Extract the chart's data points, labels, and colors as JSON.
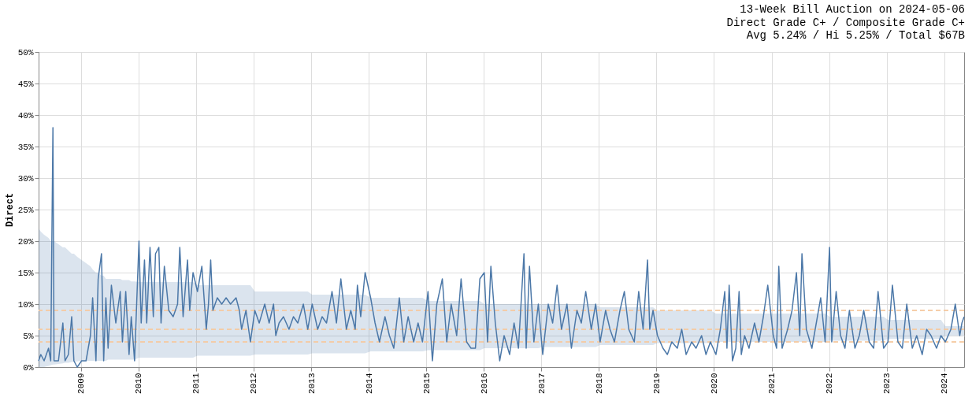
{
  "chart_data": {
    "type": "line",
    "title": "13-Week Bill Auction on 2024-05-06",
    "subtitle": [
      "Direct Grade C+ / Composite Grade C+",
      "Avg 5.24% / Hi 5.25% / Total $67B"
    ],
    "ylabel": "Direct",
    "grid": true,
    "marker": "none",
    "line_style": "solid",
    "xlim": [
      "2008-04-07",
      "2024-05-06"
    ],
    "xticks": [
      "2009",
      "2010",
      "2011",
      "2012",
      "2013",
      "2014",
      "2015",
      "2016",
      "2017",
      "2018",
      "2019",
      "2020",
      "2021",
      "2022",
      "2023",
      "2024"
    ],
    "ylim": [
      0,
      50
    ],
    "yticks": [
      {
        "value": 0,
        "label": "0%"
      },
      {
        "value": 5,
        "label": "5%"
      },
      {
        "value": 10,
        "label": "10%"
      },
      {
        "value": 15,
        "label": "15%"
      },
      {
        "value": 20,
        "label": "20%"
      },
      {
        "value": 25,
        "label": "25%"
      },
      {
        "value": 30,
        "label": "30%"
      },
      {
        "value": 35,
        "label": "35%"
      },
      {
        "value": 40,
        "label": "40%"
      },
      {
        "value": 45,
        "label": "45%"
      },
      {
        "value": 50,
        "label": "50%"
      }
    ],
    "ref_lines": [
      {
        "axis": "y",
        "value": 4,
        "color": "#f5c9a0",
        "line_style": "dashed"
      },
      {
        "axis": "y",
        "value": 6,
        "color": "#f5c9a0",
        "line_style": "dashed"
      },
      {
        "axis": "y",
        "value": 9,
        "color": "#f5c9a0",
        "line_style": "dashed"
      }
    ],
    "series": [
      {
        "color": "#4c78a8",
        "lower": [
          0,
          0,
          0,
          0.2,
          0.3,
          0.4,
          0.4,
          0.5,
          0.6,
          0.7,
          0.7,
          0.8,
          0.8,
          0.9,
          1,
          1,
          1,
          1,
          1,
          1,
          1,
          1,
          1,
          1.2,
          1.2,
          1.2,
          1.2,
          1.2,
          1.2,
          1.2,
          1.2,
          1.2,
          1.5,
          1.5,
          1.5,
          1.5,
          1.5,
          1.5,
          1.5,
          1.5,
          1.5,
          1.5,
          1.5,
          1.5,
          1.5,
          1.5,
          1.5,
          1.5,
          1.5,
          1.5,
          1.8,
          1.8,
          1.8,
          1.8,
          1.8,
          1.8,
          1.8,
          1.8,
          1.8,
          1.8,
          1.8,
          1.8,
          1.8,
          1.8,
          1.8,
          2,
          2,
          2,
          2,
          2,
          2,
          2,
          2,
          2,
          2,
          2,
          2,
          2,
          2.2,
          2.2,
          2.2,
          2.2,
          2.2,
          2.2,
          2.2,
          2.2,
          2.2,
          2.2,
          2.2,
          2.2,
          2.2,
          2.5,
          2.5,
          2.5,
          2.5,
          2.5,
          2.5,
          2.5,
          2.5,
          2.5,
          2.5,
          2.5,
          2.5,
          2.7,
          2.7,
          2.7,
          2.7,
          2.7,
          2.7,
          2.7,
          2.7,
          2.7,
          2.7,
          2.7,
          2.7,
          3,
          3,
          3,
          3,
          3,
          3,
          3,
          3,
          3,
          3,
          3,
          3,
          3,
          3,
          3.2,
          3.2,
          3.2,
          3.2,
          3.2,
          3.2,
          3.2,
          3.2,
          3.2,
          3.2,
          3.2,
          3.2,
          3.5,
          3.5,
          3.5,
          3.5,
          3.5,
          3.5,
          3.5,
          3.5,
          3.5,
          3.5,
          3.5,
          3.5,
          3.5,
          3.8,
          3.8,
          3.8,
          3.8,
          3.8,
          3.8,
          3.8,
          3.8,
          3.8,
          3.8,
          3.8,
          3.8,
          4,
          4,
          4,
          4,
          4,
          4,
          4,
          4,
          4,
          4,
          4,
          4,
          4,
          4,
          4,
          4,
          4,
          4,
          4,
          4,
          4,
          4,
          4,
          4,
          4,
          4,
          4,
          4,
          4,
          4.2,
          4.2,
          4.2,
          4.2,
          4.2,
          4.2,
          4.2,
          4.2,
          4.2,
          4.2,
          4.2,
          4.2,
          4.2,
          4.5,
          4.5,
          4.5,
          4.5,
          4.5,
          4.5,
          4.5,
          4.5,
          4.5,
          4.5,
          4.5,
          4.5,
          5,
          5,
          5,
          5,
          5,
          5
        ],
        "upper": [
          22,
          21.5,
          21,
          20.5,
          20,
          20,
          20,
          19.5,
          19,
          19,
          18.5,
          18,
          18,
          17.5,
          17,
          16.5,
          16,
          15.5,
          15,
          15,
          14.5,
          14.5,
          14,
          14,
          14,
          14,
          14,
          13.8,
          13.8,
          13.8,
          13.6,
          13.6,
          13.5,
          13.5,
          13.5,
          13.5,
          13.5,
          13.5,
          13.5,
          13.5,
          13.5,
          13.5,
          13.5,
          13.5,
          13.5,
          13.5,
          13.5,
          13.5,
          13.5,
          13.5,
          13,
          13,
          13,
          13,
          13,
          13,
          13,
          13,
          13,
          13,
          13,
          13,
          13,
          13,
          13,
          12,
          12,
          12,
          12,
          12,
          12,
          12,
          12,
          12,
          12,
          12,
          12,
          12,
          11.5,
          11.5,
          11.5,
          11.5,
          11.5,
          11.5,
          11.5,
          11.5,
          11.5,
          11.5,
          11.5,
          11.5,
          11.5,
          11,
          11,
          11,
          11,
          11,
          11,
          11,
          11,
          11,
          11,
          11,
          11,
          10.5,
          10.5,
          10.5,
          10.5,
          10.5,
          10.5,
          10.5,
          10.5,
          10.5,
          10.5,
          10.5,
          10.5,
          10,
          10,
          10,
          10,
          10,
          10,
          10,
          10,
          10,
          10,
          10,
          10,
          10,
          10,
          10,
          10,
          10,
          10,
          10,
          10,
          10,
          10,
          10,
          10,
          10,
          10,
          9.5,
          9.5,
          9.5,
          9.5,
          9.5,
          9.5,
          9.5,
          9.5,
          9.5,
          9.5,
          9.5,
          9.5,
          9.5,
          9,
          9,
          9,
          9,
          9,
          9,
          9,
          9,
          9,
          9,
          9,
          9,
          8.5,
          8.5,
          8.5,
          8.5,
          8.5,
          8.5,
          8.5,
          8.5,
          8.5,
          8.5,
          8.5,
          8.5,
          8.5,
          8.5,
          8.5,
          8.5,
          8.5,
          8.5,
          8.5,
          8.5,
          8.5,
          8.5,
          8.5,
          8.5,
          8.5,
          8.5,
          8.5,
          8.5,
          8.5,
          8,
          8,
          8,
          8,
          8,
          8,
          8,
          8,
          8,
          8,
          8,
          8,
          8,
          7.5,
          7.5,
          7.5,
          7.5,
          7.5,
          7.5,
          7.5,
          7.5,
          7.5,
          7.5,
          7.5,
          7.5,
          6.5,
          6.5,
          6.5,
          6.5,
          6.5,
          6.5
        ],
        "x": [
          "2008-04-07",
          "2008-04-21",
          "2008-05-12",
          "2008-06-09",
          "2008-06-23",
          "2008-07-07",
          "2008-07-14",
          "2008-08-11",
          "2008-09-08",
          "2008-09-22",
          "2008-10-13",
          "2008-11-03",
          "2008-11-17",
          "2008-12-08",
          "2009-01-05",
          "2009-02-02",
          "2009-03-02",
          "2009-03-16",
          "2009-04-06",
          "2009-04-20",
          "2009-05-11",
          "2009-05-25",
          "2009-06-08",
          "2009-06-22",
          "2009-07-13",
          "2009-08-10",
          "2009-09-07",
          "2009-09-21",
          "2009-10-12",
          "2009-11-02",
          "2009-11-16",
          "2009-12-07",
          "2010-01-04",
          "2010-01-18",
          "2010-02-08",
          "2010-02-22",
          "2010-03-15",
          "2010-04-05",
          "2010-04-19",
          "2010-05-10",
          "2010-05-24",
          "2010-06-14",
          "2010-07-12",
          "2010-08-09",
          "2010-09-06",
          "2010-09-20",
          "2010-10-11",
          "2010-11-08",
          "2010-11-22",
          "2010-12-13",
          "2011-01-10",
          "2011-02-07",
          "2011-03-07",
          "2011-03-21",
          "2011-04-04",
          "2011-04-18",
          "2011-05-16",
          "2011-06-13",
          "2011-07-11",
          "2011-08-08",
          "2011-09-12",
          "2011-10-03",
          "2011-10-17",
          "2011-11-14",
          "2011-12-12",
          "2012-01-09",
          "2012-02-06",
          "2012-03-12",
          "2012-04-09",
          "2012-05-07",
          "2012-05-21",
          "2012-06-11",
          "2012-07-09",
          "2012-08-13",
          "2012-09-10",
          "2012-10-08",
          "2012-11-12",
          "2012-12-10",
          "2013-01-07",
          "2013-02-11",
          "2013-03-11",
          "2013-04-08",
          "2013-05-13",
          "2013-06-10",
          "2013-07-08",
          "2013-08-12",
          "2013-09-09",
          "2013-10-07",
          "2013-10-21",
          "2013-11-11",
          "2013-12-09",
          "2014-01-13",
          "2014-02-10",
          "2014-03-10",
          "2014-04-14",
          "2014-05-12",
          "2014-06-09",
          "2014-07-14",
          "2014-08-11",
          "2014-09-08",
          "2014-10-13",
          "2014-11-10",
          "2014-12-08",
          "2015-01-12",
          "2015-02-09",
          "2015-03-09",
          "2015-04-13",
          "2015-05-11",
          "2015-06-08",
          "2015-07-13",
          "2015-08-10",
          "2015-09-14",
          "2015-10-12",
          "2015-11-09",
          "2015-12-07",
          "2016-01-04",
          "2016-01-25",
          "2016-02-15",
          "2016-03-14",
          "2016-04-11",
          "2016-05-09",
          "2016-06-13",
          "2016-07-11",
          "2016-08-08",
          "2016-09-12",
          "2016-09-26",
          "2016-10-17",
          "2016-11-14",
          "2016-12-12",
          "2017-01-09",
          "2017-02-13",
          "2017-03-13",
          "2017-04-10",
          "2017-05-08",
          "2017-06-12",
          "2017-07-10",
          "2017-08-14",
          "2017-09-11",
          "2017-10-09",
          "2017-11-13",
          "2017-12-11",
          "2018-01-08",
          "2018-02-12",
          "2018-03-12",
          "2018-04-09",
          "2018-05-14",
          "2018-06-11",
          "2018-07-09",
          "2018-08-13",
          "2018-09-10",
          "2018-10-08",
          "2018-11-05",
          "2018-11-19",
          "2018-12-10",
          "2019-01-07",
          "2019-02-11",
          "2019-03-11",
          "2019-04-08",
          "2019-05-13",
          "2019-06-10",
          "2019-07-08",
          "2019-08-12",
          "2019-09-09",
          "2019-10-14",
          "2019-11-11",
          "2019-12-09",
          "2020-01-13",
          "2020-02-10",
          "2020-03-09",
          "2020-03-23",
          "2020-04-06",
          "2020-04-27",
          "2020-05-18",
          "2020-06-08",
          "2020-06-22",
          "2020-07-13",
          "2020-08-10",
          "2020-09-14",
          "2020-10-12",
          "2020-11-09",
          "2020-12-07",
          "2021-01-11",
          "2021-02-01",
          "2021-02-15",
          "2021-03-08",
          "2021-04-12",
          "2021-05-10",
          "2021-06-07",
          "2021-06-28",
          "2021-07-12",
          "2021-08-09",
          "2021-09-13",
          "2021-10-11",
          "2021-11-08",
          "2021-12-06",
          "2022-01-03",
          "2022-01-17",
          "2022-02-14",
          "2022-03-14",
          "2022-04-11",
          "2022-05-09",
          "2022-06-13",
          "2022-07-11",
          "2022-08-08",
          "2022-09-12",
          "2022-10-10",
          "2022-11-07",
          "2022-12-12",
          "2023-01-09",
          "2023-02-06",
          "2023-03-13",
          "2023-04-10",
          "2023-05-08",
          "2023-06-12",
          "2023-07-10",
          "2023-08-14",
          "2023-09-11",
          "2023-10-09",
          "2023-11-13",
          "2023-12-11",
          "2024-01-08",
          "2024-02-12",
          "2024-03-11",
          "2024-04-08",
          "2024-04-22",
          "2024-05-06"
        ],
        "values": [
          1,
          2,
          1,
          3,
          1,
          38,
          1,
          1,
          7,
          1,
          2,
          8,
          1,
          0,
          1,
          1,
          5,
          11,
          1,
          14,
          18,
          1,
          11,
          3,
          13,
          7,
          12,
          4,
          12,
          2,
          8,
          1,
          20,
          7,
          17,
          7,
          19,
          8,
          18,
          19,
          7,
          16,
          9,
          8,
          10,
          19,
          8,
          17,
          9,
          15,
          12,
          16,
          6,
          10,
          17,
          9,
          11,
          10,
          11,
          10,
          11,
          9,
          6,
          9,
          4,
          9,
          7,
          10,
          7,
          10,
          5,
          7,
          8,
          6,
          8,
          7,
          10,
          6,
          10,
          6,
          8,
          7,
          12,
          7,
          14,
          6,
          9,
          6,
          13,
          8,
          15,
          11,
          7,
          4,
          8,
          5,
          3,
          11,
          4,
          8,
          4,
          7,
          4,
          12,
          1,
          10,
          14,
          4,
          10,
          5,
          14,
          4,
          3,
          3,
          14,
          15,
          4,
          16,
          7,
          1,
          5,
          2,
          7,
          3,
          18,
          3,
          16,
          4,
          10,
          2,
          10,
          7,
          13,
          6,
          10,
          3,
          9,
          7,
          12,
          6,
          10,
          4,
          9,
          6,
          4,
          9,
          12,
          6,
          4,
          12,
          6,
          17,
          6,
          9,
          5,
          3,
          2,
          4,
          3,
          6,
          2,
          4,
          3,
          5,
          2,
          4,
          2,
          6,
          12,
          3,
          13,
          1,
          3,
          12,
          2,
          5,
          3,
          7,
          4,
          8,
          13,
          5,
          3,
          16,
          3,
          6,
          9,
          15,
          5,
          18,
          6,
          3,
          7,
          11,
          4,
          19,
          4,
          12,
          5,
          3,
          9,
          3,
          5,
          9,
          4,
          3,
          12,
          3,
          4,
          13,
          4,
          3,
          10,
          3,
          5,
          2,
          6,
          5,
          3,
          5,
          4,
          6,
          10,
          5,
          7,
          8
        ]
      }
    ]
  }
}
